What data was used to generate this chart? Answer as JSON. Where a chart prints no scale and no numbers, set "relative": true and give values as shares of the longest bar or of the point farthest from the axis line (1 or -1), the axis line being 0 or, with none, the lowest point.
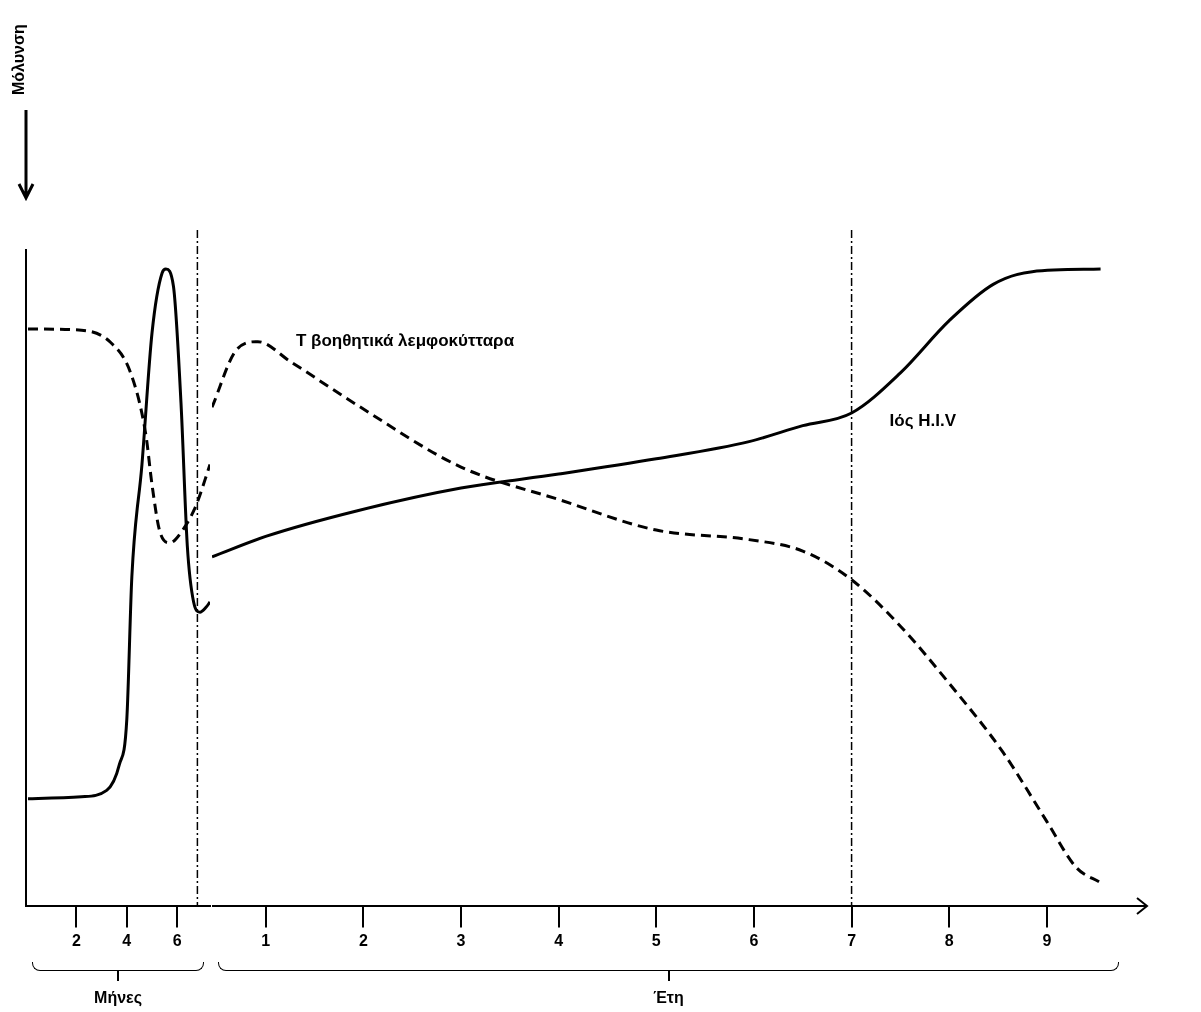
{
  "chart_data": [
    {
      "type": "line",
      "annotations": [
        "Μόλυνση"
      ],
      "xlabel": "Μήνες",
      "relative": true,
      "marker": "none",
      "legend": false,
      "grid": false,
      "tick_labels": "x",
      "xlim": [
        0,
        7.3
      ],
      "xticks": [
        2,
        4,
        6
      ],
      "ref_lines": [
        {
          "axis": "x",
          "value": 6.8,
          "line_style": "dashdot",
          "color": "#000000"
        }
      ],
      "series": [
        {
          "color": "#000000",
          "line_style": "solid",
          "x": [
            0.08,
            2.2,
            3.2,
            3.7,
            4.0,
            4.2,
            4.6,
            5.0,
            5.4,
            5.55,
            5.85,
            6.15,
            6.4,
            6.65,
            6.9,
            7.15,
            7.3
          ],
          "values": [
            0.168,
            0.171,
            0.181,
            0.221,
            0.293,
            0.517,
            0.693,
            0.9,
            0.994,
            1.0,
            0.973,
            0.789,
            0.565,
            0.477,
            0.461,
            0.469,
            0.477
          ]
        },
        {
          "color": "#000000",
          "line_style": "dashed",
          "x": [
            0.08,
            2.2,
            3.35,
            4.15,
            4.75,
            5.0,
            5.3,
            5.7,
            6.25,
            6.75,
            7.3
          ],
          "values": [
            0.906,
            0.904,
            0.885,
            0.837,
            0.741,
            0.661,
            0.589,
            0.57,
            0.592,
            0.629,
            0.693
          ]
        }
      ]
    },
    {
      "type": "line",
      "xlabel": "Έτη",
      "relative": true,
      "marker": "none",
      "legend": false,
      "grid": false,
      "tick_labels": "x",
      "xlim": [
        0.45,
        9.8
      ],
      "xticks": [
        1,
        2,
        3,
        4,
        5,
        6,
        7,
        8,
        9
      ],
      "ref_lines": [
        {
          "axis": "x",
          "value": 7,
          "line_style": "dashdot",
          "color": "#000000"
        }
      ],
      "series": [
        {
          "name": "Ιός H.I.V",
          "color": "#000000",
          "line_style": "solid",
          "x": [
            0.45,
            1.0,
            1.93,
            3.0,
            4.0,
            5.0,
            5.95,
            6.5,
            7.0,
            7.5,
            8.0,
            8.45,
            8.85,
            9.55
          ],
          "values": [
            0.548,
            0.58,
            0.62,
            0.656,
            0.678,
            0.702,
            0.729,
            0.754,
            0.774,
            0.837,
            0.919,
            0.976,
            0.996,
            1.0
          ]
        },
        {
          "name": "Τ βοηθητικά λεμφοκύτταρα",
          "color": "#000000",
          "line_style": "dashed",
          "x": [
            0.45,
            0.7,
            0.92,
            1.25,
            1.93,
            3.0,
            4.0,
            5.0,
            5.95,
            6.5,
            7.0,
            7.5,
            8.0,
            8.55,
            9.0,
            9.3,
            9.55
          ],
          "values": [
            0.783,
            0.873,
            0.886,
            0.855,
            0.787,
            0.689,
            0.638,
            0.59,
            0.575,
            0.557,
            0.512,
            0.439,
            0.349,
            0.241,
            0.132,
            0.06,
            0.036
          ]
        }
      ]
    }
  ]
}
